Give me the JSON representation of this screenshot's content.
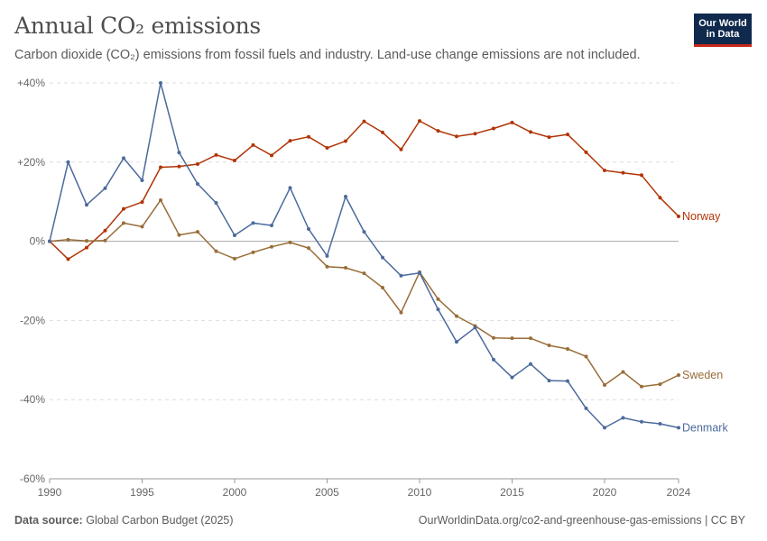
{
  "header": {
    "title": "Annual CO₂ emissions",
    "subtitle": "Carbon dioxide (CO₂) emissions from fossil fuels and industry. Land-use change emissions are not included.",
    "logo_line1": "Our World",
    "logo_line2": "in Data"
  },
  "footer": {
    "source_label": "Data source:",
    "source_value": "Global Carbon Budget (2025)",
    "url": "OurWorldinData.org/co2-and-greenhouse-gas-emissions | CC BY"
  },
  "colors": {
    "norway": "#b13507",
    "sweden": "#996d39",
    "denmark": "#4c6a9c",
    "grid": "#dddddd",
    "zero": "#aaaaaa"
  },
  "chart_data": {
    "type": "line",
    "x_tick_labels": [
      "1990",
      "1995",
      "2000",
      "2005",
      "2010",
      "2015",
      "2020",
      "2024"
    ],
    "y_tick_labels": [
      "+40%",
      "+20%",
      "0%",
      "-20%",
      "-40%",
      "-60%"
    ],
    "y_ticks": [
      40,
      20,
      0,
      -20,
      -40,
      -60
    ],
    "x_ticks": [
      1990,
      1995,
      2000,
      2005,
      2010,
      2015,
      2020,
      2024
    ],
    "xlim": [
      1990,
      2024
    ],
    "ylim": [
      -60,
      40
    ],
    "legend": "inline-right",
    "x": [
      1990,
      1991,
      1992,
      1993,
      1994,
      1995,
      1996,
      1997,
      1998,
      1999,
      2000,
      2001,
      2002,
      2003,
      2004,
      2005,
      2006,
      2007,
      2008,
      2009,
      2010,
      2011,
      2012,
      2013,
      2014,
      2015,
      2016,
      2017,
      2018,
      2019,
      2020,
      2021,
      2022,
      2023,
      2024
    ],
    "series": [
      {
        "name": "Norway",
        "key": "norway",
        "values": [
          0,
          -4.5,
          -1.6,
          2.7,
          8.2,
          9.9,
          18.7,
          18.9,
          19.5,
          21.8,
          20.4,
          24.3,
          21.7,
          25.4,
          26.4,
          23.6,
          25.3,
          30.3,
          27.5,
          23.2,
          30.4,
          27.9,
          26.5,
          27.2,
          28.5,
          30.0,
          27.6,
          26.3,
          27.0,
          22.5,
          17.9,
          17.3,
          16.7,
          11.0,
          6.3
        ]
      },
      {
        "name": "Sweden",
        "key": "sweden",
        "values": [
          0,
          0.4,
          0.1,
          0.2,
          4.6,
          3.7,
          10.4,
          1.6,
          2.4,
          -2.5,
          -4.4,
          -2.8,
          -1.4,
          -0.3,
          -1.7,
          -6.4,
          -6.7,
          -8.1,
          -11.7,
          -18.0,
          -7.8,
          -14.6,
          -18.9,
          -21.4,
          -24.4,
          -24.5,
          -24.5,
          -26.3,
          -27.2,
          -29.1,
          -36.3,
          -33.0,
          -36.7,
          -36.1,
          -33.8
        ]
      },
      {
        "name": "Denmark",
        "key": "denmark",
        "values": [
          0,
          20.0,
          9.2,
          13.4,
          21.0,
          15.4,
          40.0,
          22.4,
          14.5,
          9.7,
          1.5,
          4.6,
          4.0,
          13.5,
          3.1,
          -3.7,
          11.3,
          2.4,
          -4.1,
          -8.7,
          -8.0,
          -17.2,
          -25.4,
          -21.8,
          -29.9,
          -34.4,
          -31.0,
          -35.2,
          -35.3,
          -42.2,
          -47.1,
          -44.6,
          -45.6,
          -46.1,
          -47.1
        ]
      }
    ]
  }
}
